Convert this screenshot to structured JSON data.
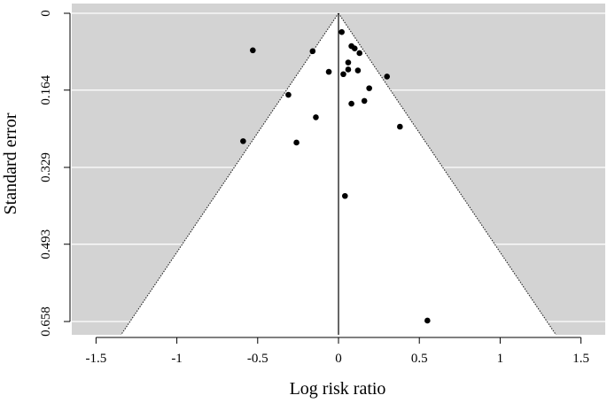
{
  "chart_data": {
    "type": "scatter",
    "subtype": "funnel plot",
    "title": "",
    "xlabel": "Log risk ratio",
    "ylabel": "Standard error",
    "xlim": [
      -1.65,
      1.65
    ],
    "ylim": [
      0.658,
      0
    ],
    "y_axis_reversed": true,
    "x_ticks": [
      -1.5,
      -1,
      -0.5,
      0,
      0.5,
      1,
      1.5
    ],
    "x_tick_labels": [
      "-1.5",
      "-1",
      "-0.5",
      "0",
      "0.5",
      "1",
      "1.5"
    ],
    "y_ticks": [
      0,
      0.164,
      0.329,
      0.493,
      0.658
    ],
    "y_tick_labels": [
      "0",
      "0.164",
      "0.329",
      "0.493",
      "0.658"
    ],
    "grid": "horizontal",
    "background_color": "#d3d3d3",
    "funnel_fill_color": "#ffffff",
    "point_color": "#000000",
    "funnel_apex": {
      "x": 0,
      "y": 0
    },
    "funnel_z": 1.96,
    "reference_line_x": 0,
    "points": [
      {
        "x": 0.02,
        "y": 0.04
      },
      {
        "x": 0.08,
        "y": 0.07
      },
      {
        "x": 0.1,
        "y": 0.075
      },
      {
        "x": 0.13,
        "y": 0.085
      },
      {
        "x": -0.16,
        "y": 0.081
      },
      {
        "x": -0.53,
        "y": 0.079
      },
      {
        "x": 0.06,
        "y": 0.105
      },
      {
        "x": -0.06,
        "y": 0.125
      },
      {
        "x": 0.03,
        "y": 0.13
      },
      {
        "x": 0.06,
        "y": 0.12
      },
      {
        "x": 0.12,
        "y": 0.122
      },
      {
        "x": 0.3,
        "y": 0.135
      },
      {
        "x": 0.19,
        "y": 0.16
      },
      {
        "x": -0.31,
        "y": 0.174
      },
      {
        "x": 0.16,
        "y": 0.187
      },
      {
        "x": 0.08,
        "y": 0.193
      },
      {
        "x": -0.14,
        "y": 0.222
      },
      {
        "x": 0.38,
        "y": 0.242
      },
      {
        "x": -0.59,
        "y": 0.273
      },
      {
        "x": -0.26,
        "y": 0.276
      },
      {
        "x": 0.04,
        "y": 0.39
      },
      {
        "x": 0.55,
        "y": 0.656
      }
    ]
  }
}
